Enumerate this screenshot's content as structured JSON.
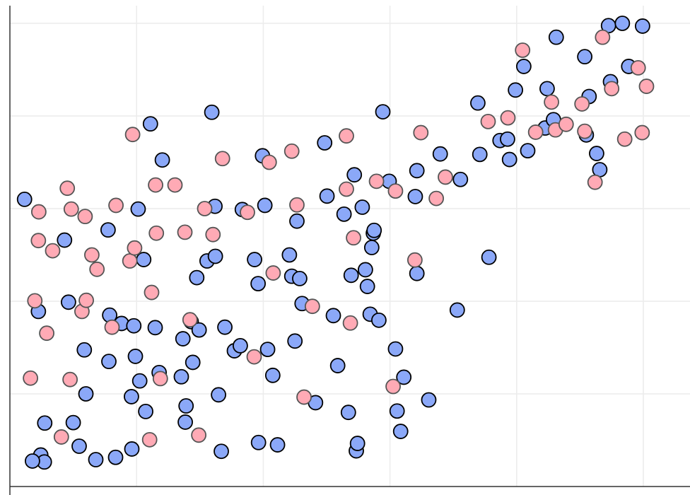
{
  "chart_data": {
    "type": "scatter",
    "title": "",
    "xlabel": "",
    "ylabel": "",
    "grid": true,
    "legend": "none",
    "xlim": [
      0,
      17
    ],
    "ylim": [
      0,
      10.3
    ],
    "xgrid": [
      3.2,
      6.4,
      9.6,
      12.8,
      16.0
    ],
    "ygrid": [
      2.0,
      4.0,
      6.0,
      8.0,
      10.0
    ],
    "series": [
      {
        "color": "#8ba8f8",
        "stroke": "#000000",
        "points": [
          [
            0.37,
            6.2
          ],
          [
            0.72,
            3.78
          ],
          [
            0.78,
            0.68
          ],
          [
            0.87,
            0.53
          ],
          [
            0.57,
            0.55
          ],
          [
            0.88,
            1.37
          ],
          [
            1.38,
            5.32
          ],
          [
            1.48,
            3.98
          ],
          [
            1.6,
            1.38
          ],
          [
            1.75,
            0.87
          ],
          [
            1.88,
            2.95
          ],
          [
            1.92,
            2.0
          ],
          [
            2.17,
            0.58
          ],
          [
            2.48,
            5.54
          ],
          [
            2.52,
            3.7
          ],
          [
            2.5,
            2.7
          ],
          [
            2.67,
            0.63
          ],
          [
            2.82,
            3.52
          ],
          [
            3.07,
            1.94
          ],
          [
            3.08,
            0.81
          ],
          [
            3.17,
            2.81
          ],
          [
            3.13,
            3.47
          ],
          [
            3.24,
            5.99
          ],
          [
            3.28,
            2.28
          ],
          [
            3.38,
            4.9
          ],
          [
            3.43,
            1.62
          ],
          [
            3.55,
            7.83
          ],
          [
            3.67,
            3.43
          ],
          [
            3.77,
            2.46
          ],
          [
            3.85,
            7.05
          ],
          [
            4.33,
            2.37
          ],
          [
            4.37,
            3.19
          ],
          [
            4.43,
            1.39
          ],
          [
            4.45,
            1.74
          ],
          [
            4.58,
            3.56
          ],
          [
            4.62,
            2.68
          ],
          [
            4.72,
            4.51
          ],
          [
            4.78,
            3.38
          ],
          [
            4.98,
            4.87
          ],
          [
            5.1,
            8.08
          ],
          [
            5.18,
            6.05
          ],
          [
            5.19,
            4.97
          ],
          [
            5.27,
            1.98
          ],
          [
            5.34,
            0.76
          ],
          [
            5.43,
            3.44
          ],
          [
            5.67,
            2.93
          ],
          [
            5.82,
            3.04
          ],
          [
            5.87,
            5.98
          ],
          [
            6.18,
            4.9
          ],
          [
            6.27,
            4.38
          ],
          [
            6.28,
            0.95
          ],
          [
            6.38,
            7.14
          ],
          [
            6.44,
            6.07
          ],
          [
            6.51,
            2.96
          ],
          [
            6.64,
            2.4
          ],
          [
            6.76,
            0.9
          ],
          [
            7.06,
            5.0
          ],
          [
            7.12,
            4.54
          ],
          [
            7.2,
            3.14
          ],
          [
            7.25,
            5.73
          ],
          [
            7.32,
            4.49
          ],
          [
            7.38,
            3.95
          ],
          [
            7.72,
            1.81
          ],
          [
            7.95,
            7.42
          ],
          [
            8.01,
            6.27
          ],
          [
            8.17,
            3.69
          ],
          [
            8.28,
            2.61
          ],
          [
            8.44,
            5.88
          ],
          [
            8.55,
            1.6
          ],
          [
            8.62,
            4.56
          ],
          [
            8.7,
            6.73
          ],
          [
            8.75,
            0.77
          ],
          [
            8.78,
            0.93
          ],
          [
            8.9,
            6.03
          ],
          [
            8.98,
            4.68
          ],
          [
            9.03,
            4.32
          ],
          [
            9.1,
            3.72
          ],
          [
            9.14,
            5.16
          ],
          [
            9.18,
            5.47
          ],
          [
            9.2,
            5.53
          ],
          [
            9.32,
            3.59
          ],
          [
            9.42,
            8.09
          ],
          [
            9.58,
            6.59
          ],
          [
            9.74,
            2.97
          ],
          [
            9.78,
            1.63
          ],
          [
            9.87,
            1.19
          ],
          [
            9.95,
            2.36
          ],
          [
            10.24,
            6.26
          ],
          [
            10.28,
            6.82
          ],
          [
            10.28,
            4.6
          ],
          [
            10.58,
            1.87
          ],
          [
            10.87,
            7.18
          ],
          [
            11.3,
            3.81
          ],
          [
            11.38,
            6.63
          ],
          [
            11.82,
            8.28
          ],
          [
            11.87,
            7.17
          ],
          [
            12.1,
            4.95
          ],
          [
            12.38,
            7.47
          ],
          [
            12.57,
            7.5
          ],
          [
            12.62,
            7.06
          ],
          [
            12.77,
            8.56
          ],
          [
            12.98,
            9.07
          ],
          [
            13.08,
            7.25
          ],
          [
            13.52,
            7.74
          ],
          [
            13.57,
            8.59
          ],
          [
            13.73,
            7.92
          ],
          [
            13.8,
            9.7
          ],
          [
            14.52,
            9.28
          ],
          [
            14.56,
            7.59
          ],
          [
            14.63,
            8.42
          ],
          [
            14.82,
            7.19
          ],
          [
            14.9,
            6.84
          ],
          [
            15.12,
            9.95
          ],
          [
            15.17,
            8.74
          ],
          [
            15.47,
            10.0
          ],
          [
            15.63,
            9.07
          ],
          [
            15.98,
            9.94
          ]
        ]
      },
      {
        "color": "#ffaab5",
        "stroke": "#555555",
        "points": [
          [
            0.52,
            2.34
          ],
          [
            0.63,
            4.01
          ],
          [
            0.72,
            5.31
          ],
          [
            0.73,
            5.93
          ],
          [
            0.93,
            3.31
          ],
          [
            1.08,
            5.09
          ],
          [
            1.3,
            1.07
          ],
          [
            1.45,
            6.44
          ],
          [
            1.52,
            2.31
          ],
          [
            1.55,
            5.99
          ],
          [
            1.82,
            3.78
          ],
          [
            1.9,
            5.83
          ],
          [
            1.93,
            4.02
          ],
          [
            2.07,
            5.0
          ],
          [
            2.2,
            4.69
          ],
          [
            2.58,
            3.44
          ],
          [
            2.68,
            6.07
          ],
          [
            3.03,
            4.87
          ],
          [
            3.1,
            7.6
          ],
          [
            3.15,
            5.15
          ],
          [
            3.53,
            1.01
          ],
          [
            3.58,
            4.19
          ],
          [
            3.68,
            6.51
          ],
          [
            3.7,
            5.47
          ],
          [
            3.8,
            2.33
          ],
          [
            4.17,
            6.51
          ],
          [
            4.42,
            5.49
          ],
          [
            4.55,
            3.6
          ],
          [
            4.77,
            1.11
          ],
          [
            4.92,
            6.0
          ],
          [
            5.13,
            5.44
          ],
          [
            5.37,
            7.08
          ],
          [
            6.0,
            5.92
          ],
          [
            6.17,
            2.8
          ],
          [
            6.55,
            7.0
          ],
          [
            6.65,
            4.61
          ],
          [
            7.12,
            7.24
          ],
          [
            7.25,
            6.08
          ],
          [
            7.43,
            1.93
          ],
          [
            7.64,
            3.89
          ],
          [
            8.5,
            7.57
          ],
          [
            8.5,
            6.42
          ],
          [
            8.6,
            3.53
          ],
          [
            8.68,
            5.37
          ],
          [
            9.26,
            6.59
          ],
          [
            9.74,
            6.38
          ],
          [
            9.68,
            2.16
          ],
          [
            10.23,
            4.89
          ],
          [
            10.38,
            7.64
          ],
          [
            10.77,
            6.22
          ],
          [
            11.0,
            6.68
          ],
          [
            12.08,
            7.88
          ],
          [
            12.58,
            7.96
          ],
          [
            12.95,
            9.42
          ],
          [
            13.28,
            7.65
          ],
          [
            13.68,
            8.3
          ],
          [
            13.78,
            7.7
          ],
          [
            14.05,
            7.82
          ],
          [
            14.45,
            8.26
          ],
          [
            14.52,
            7.67
          ],
          [
            14.78,
            6.57
          ],
          [
            14.97,
            9.7
          ],
          [
            15.2,
            8.59
          ],
          [
            15.53,
            7.5
          ],
          [
            15.87,
            9.04
          ],
          [
            15.97,
            7.64
          ],
          [
            16.08,
            8.64
          ]
        ]
      }
    ]
  }
}
